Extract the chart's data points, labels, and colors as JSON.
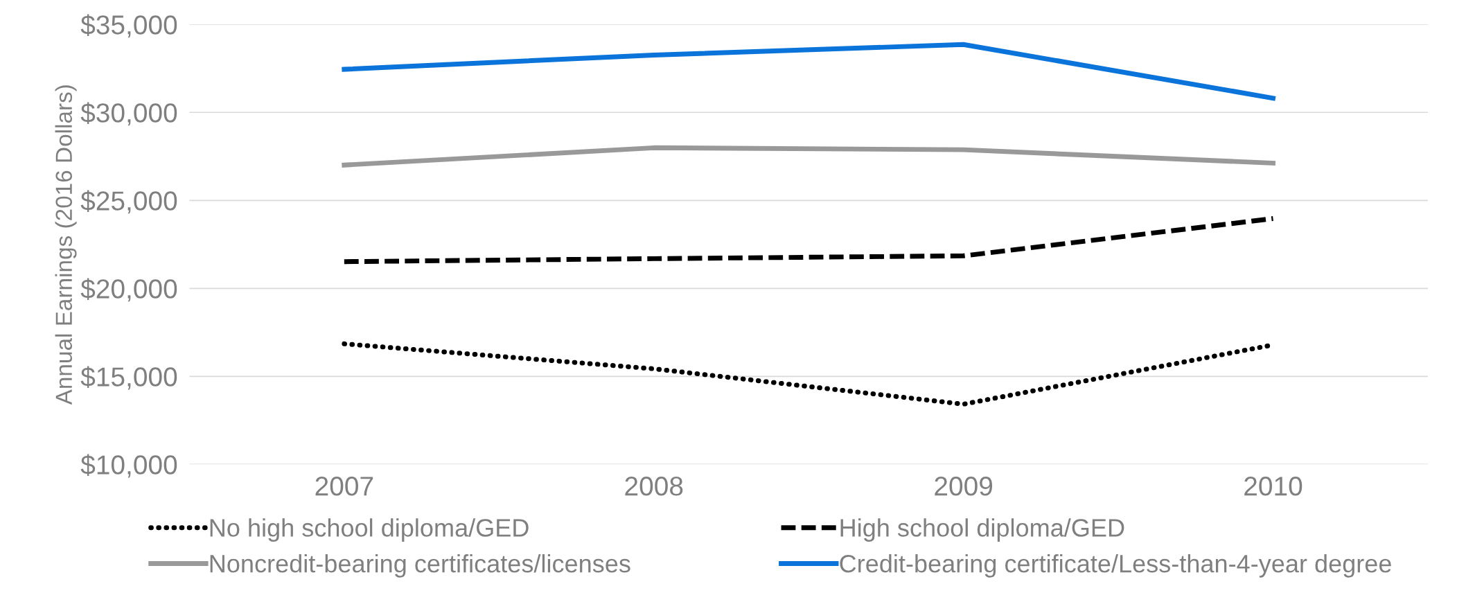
{
  "chart_data": {
    "type": "line",
    "ylabel": "Annual Earnings (2016 Dollars)",
    "categories": [
      "2007",
      "2008",
      "2009",
      "2010"
    ],
    "series": [
      {
        "name": "No high school diploma/GED",
        "color": "#000000",
        "line_style": "dotted",
        "values": [
          16850,
          15430,
          13420,
          16790
        ]
      },
      {
        "name": "High school diploma/GED",
        "color": "#000000",
        "line_style": "dashed",
        "values": [
          21520,
          21690,
          21850,
          23970
        ]
      },
      {
        "name": "Noncredit-bearing certificates/licenses",
        "color": "#999999",
        "line_style": "solid",
        "values": [
          27010,
          27990,
          27880,
          27120
        ]
      },
      {
        "name": "Credit-bearing certificate/Less-than-4-year degree",
        "color": "#0a74da",
        "line_style": "solid",
        "values": [
          32450,
          33260,
          33860,
          30810
        ]
      }
    ],
    "ylim": [
      10000,
      35000
    ],
    "yticks": [
      {
        "value": 10000,
        "label": "$10,000"
      },
      {
        "value": 15000,
        "label": "$15,000"
      },
      {
        "value": 20000,
        "label": "$20,000"
      },
      {
        "value": 25000,
        "label": "$25,000"
      },
      {
        "value": 30000,
        "label": "$30,000"
      },
      {
        "value": 35000,
        "label": "$35,000"
      }
    ],
    "grid": "y",
    "legend": "bottom",
    "marker": "none"
  }
}
